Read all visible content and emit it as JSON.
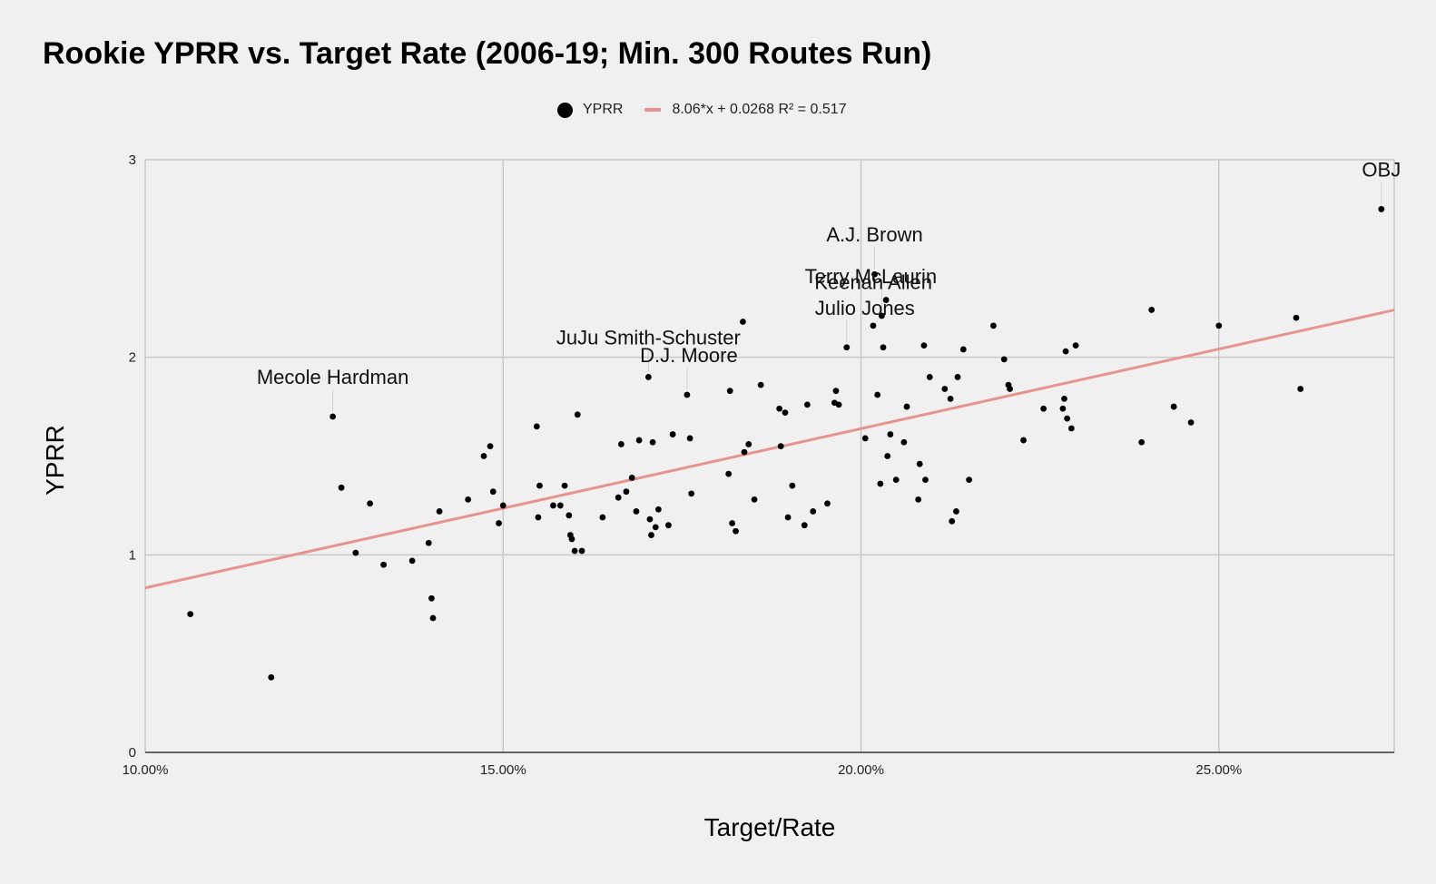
{
  "chart_data": {
    "type": "scatter",
    "title": "Rookie YPRR vs. Target Rate (2006-19; Min. 300 Routes Run)",
    "xlabel": "Target/Rate",
    "ylabel": "YPRR",
    "xlim": [
      0.1,
      0.2745
    ],
    "ylim": [
      0,
      3
    ],
    "x_ticks": [
      0.1,
      0.15,
      0.2,
      0.25
    ],
    "x_tick_labels": [
      "10.00%",
      "15.00%",
      "20.00%",
      "25.00%"
    ],
    "y_ticks": [
      0,
      1,
      2,
      3
    ],
    "y_tick_labels": [
      "0",
      "1",
      "2",
      "3"
    ],
    "grid": true,
    "legend_position": "top-center",
    "series": [
      {
        "name": "YPRR",
        "color": "#000000",
        "points": [
          [
            0.1063,
            0.7
          ],
          [
            0.1176,
            0.38
          ],
          [
            0.1262,
            1.7
          ],
          [
            0.1274,
            1.34
          ],
          [
            0.1294,
            1.01
          ],
          [
            0.1314,
            1.26
          ],
          [
            0.1333,
            0.95
          ],
          [
            0.1373,
            0.97
          ],
          [
            0.1396,
            1.06
          ],
          [
            0.14,
            0.78
          ],
          [
            0.1402,
            0.68
          ],
          [
            0.1411,
            1.22
          ],
          [
            0.1451,
            1.28
          ],
          [
            0.1473,
            1.5
          ],
          [
            0.1482,
            1.55
          ],
          [
            0.1486,
            1.32
          ],
          [
            0.1494,
            1.16
          ],
          [
            0.15,
            1.25
          ],
          [
            0.1547,
            1.65
          ],
          [
            0.1549,
            1.19
          ],
          [
            0.1551,
            1.35
          ],
          [
            0.157,
            1.25
          ],
          [
            0.158,
            1.25
          ],
          [
            0.1586,
            1.35
          ],
          [
            0.1592,
            1.2
          ],
          [
            0.1594,
            1.1
          ],
          [
            0.1596,
            1.08
          ],
          [
            0.16,
            1.02
          ],
          [
            0.1604,
            1.71
          ],
          [
            0.161,
            1.02
          ],
          [
            0.1639,
            1.19
          ],
          [
            0.1661,
            1.29
          ],
          [
            0.1665,
            1.56
          ],
          [
            0.1672,
            1.32
          ],
          [
            0.168,
            1.39
          ],
          [
            0.1686,
            1.22
          ],
          [
            0.169,
            1.58
          ],
          [
            0.1703,
            1.9
          ],
          [
            0.1705,
            1.18
          ],
          [
            0.1707,
            1.1
          ],
          [
            0.1709,
            1.57
          ],
          [
            0.1713,
            1.14
          ],
          [
            0.1717,
            1.23
          ],
          [
            0.1731,
            1.15
          ],
          [
            0.1737,
            1.61
          ],
          [
            0.1757,
            1.81
          ],
          [
            0.1761,
            1.59
          ],
          [
            0.1763,
            1.31
          ],
          [
            0.1815,
            1.41
          ],
          [
            0.1817,
            1.83
          ],
          [
            0.182,
            1.16
          ],
          [
            0.1825,
            1.12
          ],
          [
            0.1835,
            2.18
          ],
          [
            0.1837,
            1.52
          ],
          [
            0.1843,
            1.56
          ],
          [
            0.1851,
            1.28
          ],
          [
            0.186,
            1.86
          ],
          [
            0.1886,
            1.74
          ],
          [
            0.1888,
            1.55
          ],
          [
            0.1894,
            1.72
          ],
          [
            0.1898,
            1.19
          ],
          [
            0.1904,
            1.35
          ],
          [
            0.1921,
            1.15
          ],
          [
            0.1925,
            1.76
          ],
          [
            0.1933,
            1.22
          ],
          [
            0.1953,
            1.26
          ],
          [
            0.1963,
            1.77
          ],
          [
            0.1965,
            1.83
          ],
          [
            0.1969,
            1.76
          ],
          [
            0.198,
            2.05
          ],
          [
            0.2006,
            1.59
          ],
          [
            0.2017,
            2.16
          ],
          [
            0.2019,
            2.42
          ],
          [
            0.2023,
            1.81
          ],
          [
            0.2027,
            1.36
          ],
          [
            0.2029,
            2.21
          ],
          [
            0.2031,
            2.05
          ],
          [
            0.2035,
            2.29
          ],
          [
            0.2037,
            1.5
          ],
          [
            0.2041,
            1.61
          ],
          [
            0.2049,
            1.38
          ],
          [
            0.206,
            1.57
          ],
          [
            0.2064,
            1.75
          ],
          [
            0.208,
            1.28
          ],
          [
            0.2082,
            1.46
          ],
          [
            0.2088,
            2.06
          ],
          [
            0.209,
            1.38
          ],
          [
            0.2096,
            1.9
          ],
          [
            0.2117,
            1.84
          ],
          [
            0.2125,
            1.79
          ],
          [
            0.2127,
            1.17
          ],
          [
            0.2133,
            1.22
          ],
          [
            0.2135,
            1.9
          ],
          [
            0.2143,
            2.04
          ],
          [
            0.2151,
            1.38
          ],
          [
            0.2185,
            2.16
          ],
          [
            0.22,
            1.99
          ],
          [
            0.2206,
            1.86
          ],
          [
            0.2208,
            1.84
          ],
          [
            0.2227,
            1.58
          ],
          [
            0.2255,
            1.74
          ],
          [
            0.2282,
            1.74
          ],
          [
            0.2284,
            1.79
          ],
          [
            0.2286,
            2.03
          ],
          [
            0.2288,
            1.69
          ],
          [
            0.2294,
            1.64
          ],
          [
            0.23,
            2.06
          ],
          [
            0.2392,
            1.57
          ],
          [
            0.2406,
            2.24
          ],
          [
            0.2437,
            1.75
          ],
          [
            0.2461,
            1.67
          ],
          [
            0.25,
            2.16
          ],
          [
            0.2608,
            2.2
          ],
          [
            0.2614,
            1.84
          ],
          [
            0.2727,
            2.75
          ]
        ]
      },
      {
        "name": "8.06*x + 0.0268 R² = 0.517",
        "type": "trendline",
        "color": "#e69490",
        "slope": 8.06,
        "intercept": 0.0268,
        "r_squared": 0.517
      }
    ],
    "annotations": [
      {
        "text": "Mecole Hardman",
        "x": 0.1262,
        "y": 1.7
      },
      {
        "text": "JuJu Smith-Schuster",
        "x": 0.1703,
        "y": 1.9
      },
      {
        "text": "D.J. Moore",
        "x": 0.1757,
        "y": 1.81
      },
      {
        "text": "A.J. Brown",
        "x": 0.2019,
        "y": 2.42
      },
      {
        "text": "Keenan Allen",
        "x": 0.2035,
        "y": 2.29
      },
      {
        "text": "Julio Jones",
        "x": 0.198,
        "y": 2.05
      },
      {
        "text": "Terry McLaurin",
        "x": 0.2029,
        "y": 2.21
      },
      {
        "text": "OBJ",
        "x": 0.2727,
        "y": 2.75
      }
    ]
  }
}
